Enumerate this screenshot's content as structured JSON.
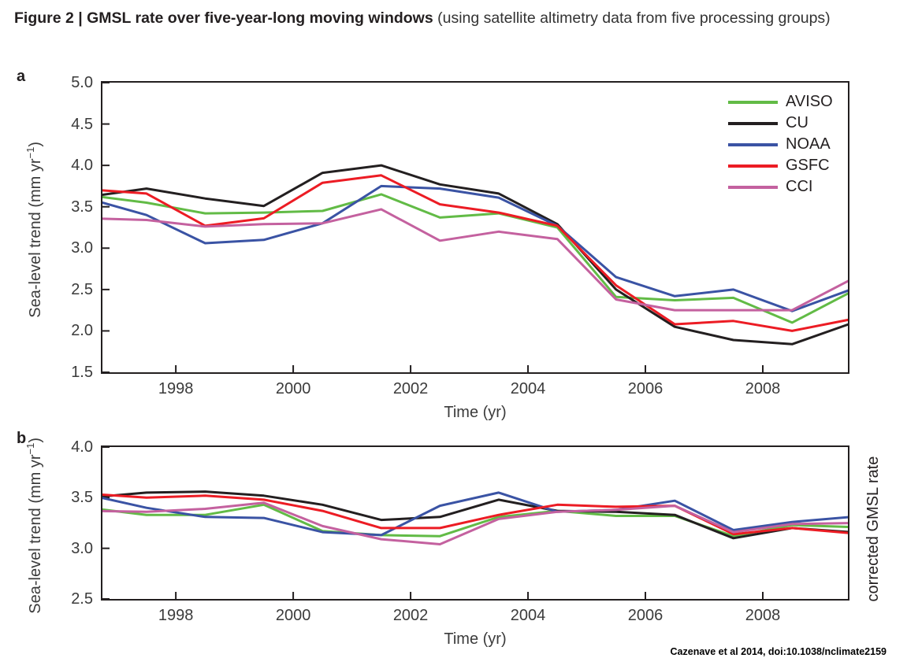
{
  "title": {
    "bold": "Figure 2 | GMSL rate over five-year-long moving windows",
    "regular": " (using satellite altimetry data from five processing groups)"
  },
  "citation": "Cazenave et al 2014, doi:10.1038/nclimate2159",
  "colors": {
    "axis": "#231f20",
    "tick_text": "#3b3b3b",
    "aviso_green": "#62bb46",
    "cu_black": "#231f20",
    "noaa_blue": "#3a53a4",
    "gsfc_red": "#ec1c24",
    "cci_pink": "#c4619f"
  },
  "chart_data": [
    {
      "type": "line",
      "panel_label": "a",
      "xlabel": "Time (yr)",
      "ylabel_parts": {
        "pre": "Sea-level trend (mm yr",
        "sup": "−1",
        "post": ")"
      },
      "xlim": [
        1996.75,
        2009.45
      ],
      "ylim": [
        1.5,
        5.0
      ],
      "xticks": [
        1998,
        2000,
        2002,
        2004,
        2006,
        2008
      ],
      "yticks": [
        1.5,
        2.0,
        2.5,
        3.0,
        3.5,
        4.0,
        4.5,
        5.0
      ],
      "grid": false,
      "legend_position": "top-right",
      "x": [
        1996.5,
        1997.5,
        1998.5,
        1999.5,
        2000.5,
        2001.5,
        2002.5,
        2003.5,
        2004.5,
        2005.5,
        2006.5,
        2007.5,
        2008.5,
        2009.5
      ],
      "series": [
        {
          "name": "AVISO",
          "color": "#62bb46",
          "values": [
            3.64,
            3.55,
            3.42,
            3.43,
            3.45,
            3.65,
            3.37,
            3.42,
            3.25,
            2.41,
            2.37,
            2.4,
            2.1,
            2.47
          ]
        },
        {
          "name": "CU",
          "color": "#231f20",
          "values": [
            3.62,
            3.72,
            3.6,
            3.51,
            3.91,
            4.0,
            3.77,
            3.66,
            3.29,
            2.5,
            2.05,
            1.89,
            1.84,
            2.09
          ]
        },
        {
          "name": "NOAA",
          "color": "#3a53a4",
          "values": [
            3.6,
            3.4,
            3.06,
            3.1,
            3.3,
            3.75,
            3.72,
            3.61,
            3.27,
            2.65,
            2.42,
            2.5,
            2.24,
            2.5
          ]
        },
        {
          "name": "GSFC",
          "color": "#ec1c24",
          "values": [
            3.71,
            3.66,
            3.27,
            3.36,
            3.79,
            3.88,
            3.53,
            3.43,
            3.27,
            2.55,
            2.08,
            2.12,
            2.0,
            2.14
          ]
        },
        {
          "name": "CCI",
          "color": "#c4619f",
          "values": [
            3.36,
            3.34,
            3.26,
            3.29,
            3.3,
            3.47,
            3.09,
            3.2,
            3.11,
            2.38,
            2.25,
            2.25,
            2.25,
            2.62
          ]
        }
      ]
    },
    {
      "type": "line",
      "panel_label": "b",
      "xlabel": "Time (yr)",
      "ylabel_parts": {
        "pre": "Sea-level trend (mm yr",
        "sup": "−1",
        "post": ")"
      },
      "right_label": "corrected GMSL rate",
      "xlim": [
        1996.75,
        2009.45
      ],
      "ylim": [
        2.5,
        4.0
      ],
      "xticks": [
        1998,
        2000,
        2002,
        2004,
        2006,
        2008
      ],
      "yticks": [
        2.5,
        3.0,
        3.5,
        4.0
      ],
      "grid": false,
      "x": [
        1996.5,
        1997.5,
        1998.5,
        1999.5,
        2000.5,
        2001.5,
        2002.5,
        2003.5,
        2004.5,
        2005.5,
        2006.5,
        2007.5,
        2008.5,
        2009.5
      ],
      "series": [
        {
          "name": "AVISO",
          "color": "#62bb46",
          "values": [
            3.4,
            3.33,
            3.33,
            3.43,
            3.17,
            3.13,
            3.12,
            3.31,
            3.37,
            3.32,
            3.32,
            3.12,
            3.23,
            3.21
          ]
        },
        {
          "name": "CU",
          "color": "#231f20",
          "values": [
            3.5,
            3.55,
            3.56,
            3.52,
            3.43,
            3.28,
            3.31,
            3.48,
            3.37,
            3.36,
            3.33,
            3.1,
            3.2,
            3.16
          ]
        },
        {
          "name": "NOAA",
          "color": "#3a53a4",
          "values": [
            3.53,
            3.4,
            3.31,
            3.3,
            3.16,
            3.13,
            3.42,
            3.55,
            3.36,
            3.38,
            3.47,
            3.18,
            3.26,
            3.31
          ]
        },
        {
          "name": "GSFC",
          "color": "#ec1c24",
          "values": [
            3.54,
            3.5,
            3.52,
            3.48,
            3.37,
            3.2,
            3.2,
            3.33,
            3.43,
            3.41,
            3.42,
            3.14,
            3.2,
            3.15
          ]
        },
        {
          "name": "CCI",
          "color": "#c4619f",
          "values": [
            3.37,
            3.36,
            3.39,
            3.45,
            3.22,
            3.09,
            3.04,
            3.29,
            3.36,
            3.38,
            3.42,
            3.16,
            3.24,
            3.25
          ]
        }
      ]
    }
  ]
}
